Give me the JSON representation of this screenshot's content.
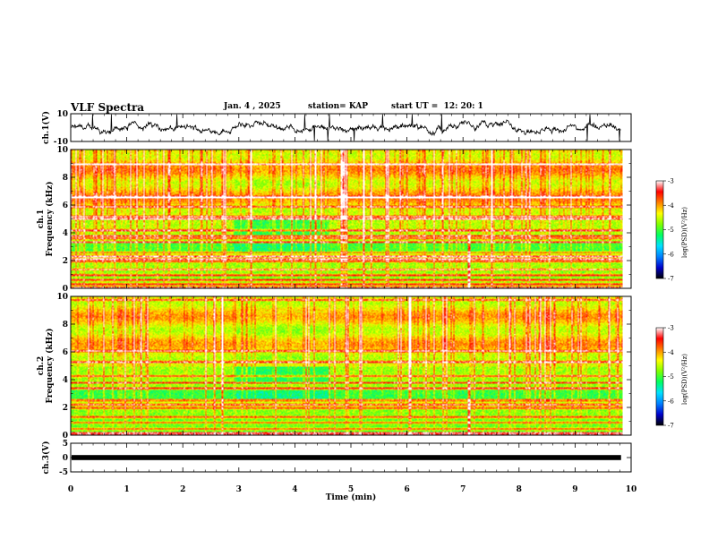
{
  "header": {
    "title": "VLF Spectra",
    "date": "Jan. 4 , 2025",
    "station": "station= KAP",
    "start": "start UT =  12: 20: 1"
  },
  "chart_data": [
    {
      "type": "line",
      "name": "ch1-waveform",
      "ylabel": "ch.1(V)",
      "ylim": [
        -10,
        10
      ],
      "yticks": [
        "10",
        "-10"
      ],
      "xlim": [
        0,
        10
      ],
      "description_color": "#000000"
    },
    {
      "type": "heatmap",
      "name": "ch1-spectrogram",
      "ylabel": "ch.1\nFrequency (kHz)",
      "ylabel_lines": [
        "ch.1",
        "Frequency (kHz)"
      ],
      "ylim": [
        0,
        10
      ],
      "yticks": [
        "0",
        "2",
        "4",
        "6",
        "8",
        "10"
      ],
      "xlim": [
        0,
        10
      ],
      "data_end_min": 9.82,
      "colorbar": {
        "label": "log(PSD)(V²/Hz)",
        "range": [
          -7,
          -3
        ],
        "ticks": [
          "-3",
          "-4",
          "-5",
          "-6",
          "-7"
        ],
        "colors": [
          "#000000",
          "#0000cc",
          "#0080ff",
          "#00e0ff",
          "#00ff60",
          "#80ff00",
          "#ffff00",
          "#ff8000",
          "#ff0000",
          "#ffffff"
        ]
      }
    },
    {
      "type": "heatmap",
      "name": "ch2-spectrogram",
      "ylabel": "ch.2\nFrequency (kHz)",
      "ylabel_lines": [
        "ch.2",
        "Frequency (kHz)"
      ],
      "ylim": [
        0,
        10
      ],
      "yticks": [
        "0",
        "2",
        "4",
        "6",
        "8",
        "10"
      ],
      "xlim": [
        0,
        10
      ],
      "data_end_min": 9.82,
      "colorbar": {
        "label": "log(PSD)(V²/Hz)",
        "range": [
          -7,
          -3
        ],
        "ticks": [
          "-3",
          "-4",
          "-5",
          "-6",
          "-7"
        ],
        "colors": [
          "#000000",
          "#0000cc",
          "#0080ff",
          "#00e0ff",
          "#00ff60",
          "#80ff00",
          "#ffff00",
          "#ff8000",
          "#ff0000",
          "#ffffff"
        ]
      }
    },
    {
      "type": "line",
      "name": "ch3-waveform",
      "ylabel": "ch.3(V)",
      "ylim": [
        -5,
        5
      ],
      "yticks": [
        "5",
        "0",
        "-5"
      ],
      "xlim": [
        0,
        10
      ],
      "level": 0,
      "xlabel": "Time (min)",
      "xticks": [
        "0",
        "1",
        "2",
        "3",
        "4",
        "5",
        "6",
        "7",
        "8",
        "9",
        "10"
      ]
    }
  ]
}
